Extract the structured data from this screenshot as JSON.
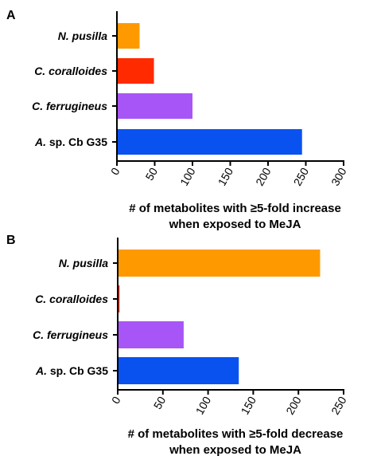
{
  "chart_data": [
    {
      "type": "bar",
      "orientation": "horizontal",
      "panel_label": "A",
      "categories": [
        {
          "prefix": "",
          "italic": "N. pusilla",
          "suffix": ""
        },
        {
          "prefix": "",
          "italic": "C. coralloides",
          "suffix": ""
        },
        {
          "prefix": "",
          "italic": "C. ferrugineus",
          "suffix": ""
        },
        {
          "prefix": "",
          "italic": "A.",
          "suffix": " sp. Cb G35"
        }
      ],
      "values": [
        30,
        49,
        100,
        245
      ],
      "colors": [
        "#ff9900",
        "#ff2a00",
        "#a855f7",
        "#0a52f0"
      ],
      "xlim": [
        0,
        300
      ],
      "xticks": [
        0,
        50,
        100,
        150,
        200,
        250,
        300
      ],
      "xlabel": [
        "# of metabolites with ≥5-fold increase",
        "when exposed to MeJA"
      ]
    },
    {
      "type": "bar",
      "orientation": "horizontal",
      "panel_label": "B",
      "categories": [
        {
          "prefix": "",
          "italic": "N. pusilla",
          "suffix": ""
        },
        {
          "prefix": "",
          "italic": "C. coralloides",
          "suffix": ""
        },
        {
          "prefix": "",
          "italic": "C. ferrugineus",
          "suffix": ""
        },
        {
          "prefix": "",
          "italic": "A.",
          "suffix": " sp. Cb G35"
        }
      ],
      "values": [
        224,
        2,
        73,
        134
      ],
      "colors": [
        "#ff9900",
        "#ff2a00",
        "#a855f7",
        "#0a52f0"
      ],
      "xlim": [
        0,
        250
      ],
      "xticks": [
        0,
        50,
        100,
        150,
        200,
        250
      ],
      "xlabel": [
        "# of metabolites with ≥5-fold decrease",
        "when exposed to MeJA"
      ]
    }
  ]
}
